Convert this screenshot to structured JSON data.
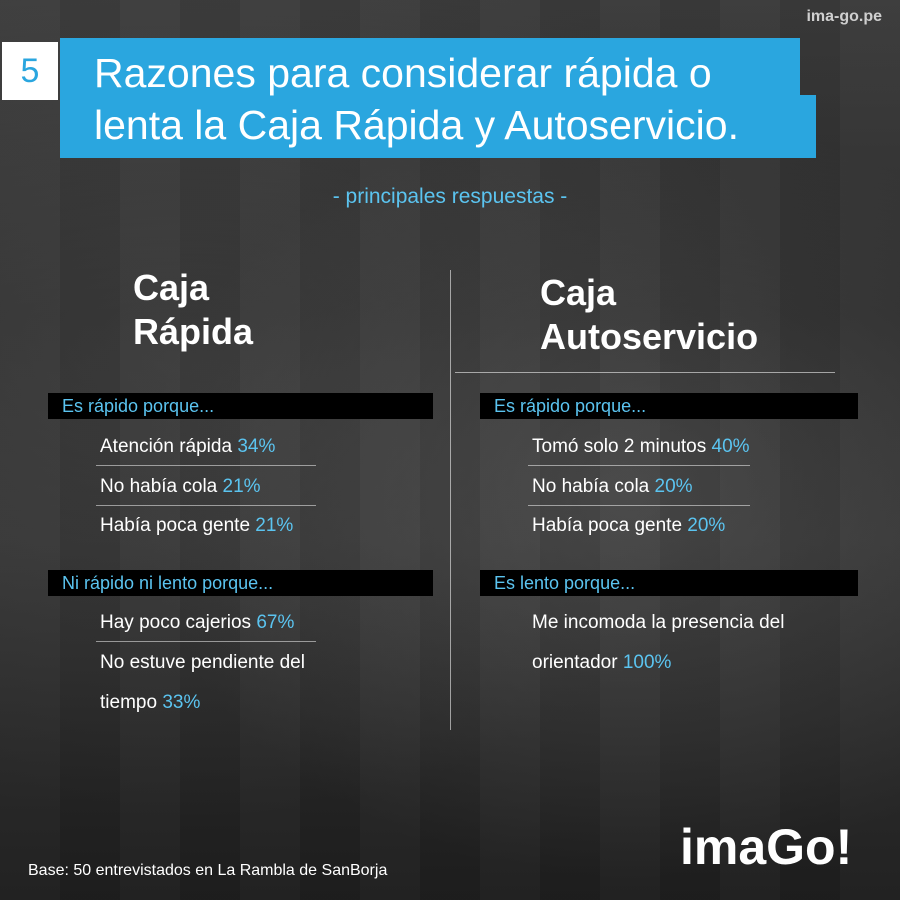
{
  "site_url": "ima-go.pe",
  "number": "5",
  "title": {
    "line1": "Razones para considerar rápida o",
    "line2": "lenta la Caja Rápida y Autoservicio."
  },
  "subtitle": "- principales respuestas  -",
  "left": {
    "title_line1": "Caja",
    "title_line2": "Rápida",
    "section1": {
      "header": "Es rápido porque...",
      "items": [
        {
          "text": "Atención rápida",
          "pct": "34%"
        },
        {
          "text": "No había cola",
          "pct": "21%"
        },
        {
          "text": "Había poca gente",
          "pct": "21%"
        }
      ]
    },
    "section2": {
      "header": "Ni rápido ni lento porque...",
      "items": [
        {
          "text": "Hay poco cajerios",
          "pct": "67%"
        },
        {
          "text_line1": "No estuve pendiente del",
          "text_line2": "tiempo",
          "pct": "33%"
        }
      ]
    }
  },
  "right": {
    "title_line1": "Caja",
    "title_line2": "Autoservicio",
    "section1": {
      "header": "Es rápido porque...",
      "items": [
        {
          "text": "Tomó solo 2 minutos",
          "pct": "40%"
        },
        {
          "text": "No había cola",
          "pct": "20%"
        },
        {
          "text": "Había poca gente",
          "pct": "20%"
        }
      ]
    },
    "section2": {
      "header": "Es lento porque...",
      "items": [
        {
          "text_line1": "Me incomoda la presencia del",
          "text_line2": "orientador",
          "pct": "100%"
        }
      ]
    }
  },
  "footer": "Base: 50 entrevistados en La Rambla de SanBorja",
  "logo_text": "imaGo!",
  "colors": {
    "accent": "#2aa6df",
    "highlight": "#5bc4f0",
    "bar_bg": "#000000"
  }
}
